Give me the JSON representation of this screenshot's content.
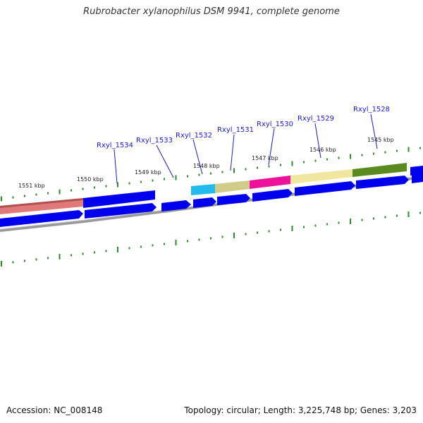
{
  "title": "Rubrobacter xylanophilus DSM 9941, complete genome",
  "footer": {
    "accession": "Accession: NC_008148",
    "summary": "Topology: circular; Length: 3,225,748 bp; Genes: 3,203"
  },
  "colors": {
    "cds_blue": "#0000ee",
    "backbone": "#888888",
    "tick_green": "#2e8b2e",
    "label_blue": "#1a1acc"
  },
  "scale_labels": [
    "1551 kbp",
    "1550 kbp",
    "1549 kbp",
    "1548 kbp",
    "1547 kbp",
    "1546 kbp",
    "1545 kbp"
  ],
  "gene_labels": [
    "Rxyl_1534",
    "Rxyl_1533",
    "Rxyl_1532",
    "Rxyl_1531",
    "Rxyl_1530",
    "Rxyl_1529",
    "Rxyl_1528"
  ],
  "feature_colors": [
    "#e07a7a",
    "#0000ee",
    "#22bbee",
    "#d2cc8a",
    "#ee1199",
    "#f0e6a0",
    "#5b8a1e"
  ]
}
